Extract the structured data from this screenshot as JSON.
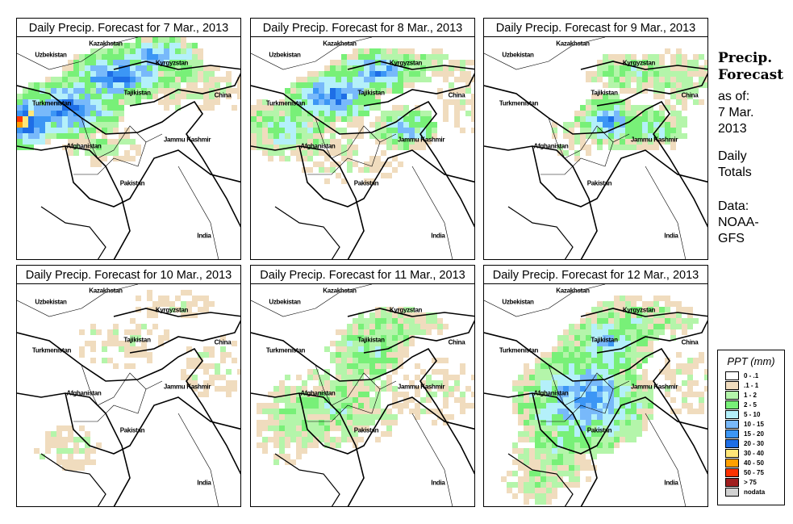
{
  "panels": [
    {
      "title": "Daily Precip. Forecast for  7 Mar., 2013"
    },
    {
      "title": "Daily Precip. Forecast for  8 Mar., 2013"
    },
    {
      "title": "Daily Precip. Forecast for  9 Mar., 2013"
    },
    {
      "title": "Daily Precip. Forecast for  10 Mar., 2013"
    },
    {
      "title": "Daily Precip. Forecast for  11 Mar., 2013"
    },
    {
      "title": "Daily Precip. Forecast for  12 Mar., 2013"
    }
  ],
  "map_labels": [
    "Kazakhstan",
    "Uzbekistan",
    "Kyrgyzstan",
    "Tajikistan",
    "China",
    "Turkmenistan",
    "Afghanistan",
    "Jammu Kashmir",
    "Pakistan",
    "India"
  ],
  "side": {
    "title1": "Precip.",
    "title2": "Forecast",
    "asof1": "as of:",
    "asof2": "7 Mar.",
    "asof3": "2013",
    "totals1": "Daily",
    "totals2": "Totals",
    "data1": "Data:",
    "data2": "NOAA-",
    "data3": "GFS"
  },
  "legend": {
    "title": "PPT (mm)",
    "items": [
      {
        "label": "0 - .1",
        "color": "#ffffff"
      },
      {
        "label": ".1 - 1",
        "color": "#f0dcbe"
      },
      {
        "label": "1 - 2",
        "color": "#b4f5aa"
      },
      {
        "label": "2 - 5",
        "color": "#78f078"
      },
      {
        "label": "5 - 10",
        "color": "#b4f0fa"
      },
      {
        "label": "10 - 15",
        "color": "#78b9fa"
      },
      {
        "label": "15 - 20",
        "color": "#3c96f5"
      },
      {
        "label": "20 - 30",
        "color": "#1e6ee6"
      },
      {
        "label": "30 - 40",
        "color": "#ffe678"
      },
      {
        "label": "40 - 50",
        "color": "#ffa000"
      },
      {
        "label": "50 - 75",
        "color": "#ff3200"
      },
      {
        "label": "> 75",
        "color": "#a01e1e"
      },
      {
        "label": "nodata",
        "color": "#d2d2d2"
      }
    ]
  }
}
